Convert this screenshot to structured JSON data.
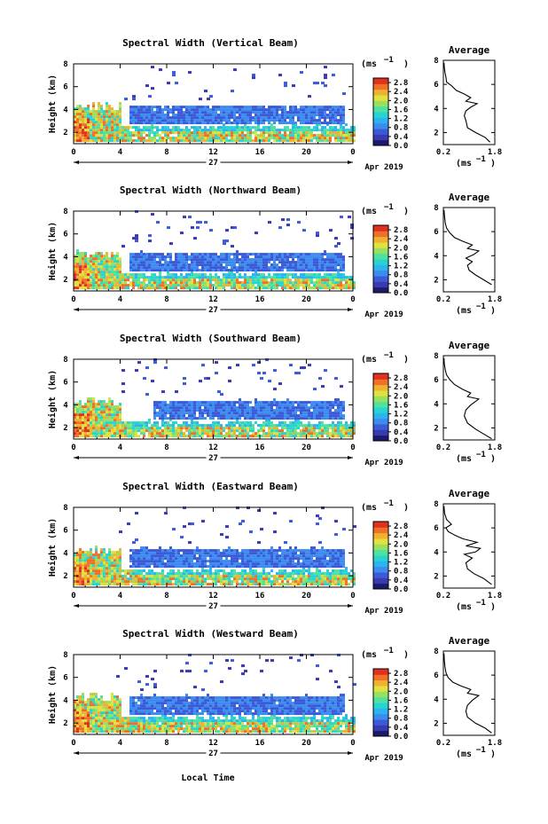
{
  "figure": {
    "xlabel": "Local Time",
    "date_label": "Apr 2019",
    "day_label": "27",
    "units_label": "(ms",
    "units_exp": "−1",
    "avg_title": "Average",
    "avg_xlabel": "(ms",
    "avg_xexp": "−1",
    "ylabel": "Height (km)"
  },
  "chart_data": [
    {
      "type": "heatmap",
      "title": "Spectral Width (Vertical Beam)",
      "xlabel": "Local Time",
      "ylabel": "Height (km)",
      "xlim": [
        0,
        24
      ],
      "ylim": [
        1,
        8
      ],
      "xticks": [
        "0",
        "4",
        "8",
        "12",
        "16",
        "20",
        "0"
      ],
      "yticks": [
        "2",
        "4",
        "6",
        "8"
      ],
      "colorbar": {
        "ticks": [
          "0.0",
          "0.4",
          "0.8",
          "1.2",
          "1.6",
          "2.0",
          "2.4",
          "2.8"
        ],
        "range": [
          0,
          3
        ]
      },
      "profile": {
        "title": "Average",
        "xlim": [
          0.2,
          1.8
        ],
        "ylim": [
          1,
          8
        ],
        "points": [
          [
            1.65,
            1.2
          ],
          [
            1.5,
            1.6
          ],
          [
            1.2,
            2.0
          ],
          [
            0.95,
            2.4
          ],
          [
            0.9,
            3.0
          ],
          [
            0.85,
            3.4
          ],
          [
            0.9,
            3.8
          ],
          [
            1.05,
            4.1
          ],
          [
            1.25,
            4.4
          ],
          [
            0.9,
            4.6
          ],
          [
            1.05,
            4.9
          ],
          [
            0.85,
            5.2
          ],
          [
            0.6,
            5.5
          ],
          [
            0.45,
            5.9
          ],
          [
            0.3,
            6.2
          ],
          [
            0.28,
            6.6
          ],
          [
            0.25,
            7.0
          ],
          [
            0.23,
            7.4
          ],
          [
            0.22,
            7.8
          ]
        ]
      }
    },
    {
      "type": "heatmap",
      "title": "Spectral Width (Northward Beam)",
      "xlabel": "Local Time",
      "ylabel": "Height (km)",
      "xlim": [
        0,
        24
      ],
      "ylim": [
        1,
        8
      ],
      "xticks": [
        "0",
        "4",
        "8",
        "12",
        "16",
        "20",
        "0"
      ],
      "yticks": [
        "2",
        "4",
        "6",
        "8"
      ],
      "colorbar": {
        "ticks": [
          "0.0",
          "0.4",
          "0.8",
          "1.2",
          "1.6",
          "2.0",
          "2.4",
          "2.8"
        ],
        "range": [
          0,
          3
        ]
      },
      "profile": {
        "title": "Average",
        "xlim": [
          0.2,
          1.8
        ],
        "ylim": [
          1,
          8
        ],
        "points": [
          [
            1.7,
            1.6
          ],
          [
            1.45,
            2.0
          ],
          [
            1.2,
            2.4
          ],
          [
            1.0,
            2.8
          ],
          [
            0.95,
            3.2
          ],
          [
            1.1,
            3.5
          ],
          [
            0.9,
            3.8
          ],
          [
            1.15,
            4.1
          ],
          [
            1.3,
            4.4
          ],
          [
            0.95,
            4.6
          ],
          [
            1.1,
            4.9
          ],
          [
            0.8,
            5.2
          ],
          [
            0.55,
            5.5
          ],
          [
            0.4,
            5.9
          ],
          [
            0.3,
            6.3
          ],
          [
            0.26,
            6.7
          ],
          [
            0.24,
            7.2
          ],
          [
            0.22,
            7.8
          ]
        ]
      }
    },
    {
      "type": "heatmap",
      "title": "Spectral Width (Southward Beam)",
      "xlabel": "Local Time",
      "ylabel": "Height (km)",
      "xlim": [
        0,
        24
      ],
      "ylim": [
        1,
        8
      ],
      "xticks": [
        "0",
        "4",
        "8",
        "12",
        "16",
        "20",
        "0"
      ],
      "yticks": [
        "2",
        "4",
        "6",
        "8"
      ],
      "colorbar": {
        "ticks": [
          "0.0",
          "0.4",
          "0.8",
          "1.2",
          "1.6",
          "2.0",
          "2.4",
          "2.8"
        ],
        "range": [
          0,
          3
        ]
      },
      "profile": {
        "title": "Average",
        "xlim": [
          0.2,
          1.8
        ],
        "ylim": [
          1,
          8
        ],
        "points": [
          [
            1.7,
            1.1
          ],
          [
            1.45,
            1.5
          ],
          [
            1.2,
            1.9
          ],
          [
            0.95,
            2.4
          ],
          [
            0.85,
            3.0
          ],
          [
            0.9,
            3.5
          ],
          [
            1.05,
            3.9
          ],
          [
            1.2,
            4.2
          ],
          [
            1.3,
            4.4
          ],
          [
            0.95,
            4.6
          ],
          [
            1.05,
            4.9
          ],
          [
            0.8,
            5.2
          ],
          [
            0.55,
            5.6
          ],
          [
            0.4,
            6.0
          ],
          [
            0.3,
            6.4
          ],
          [
            0.26,
            6.8
          ],
          [
            0.23,
            7.3
          ],
          [
            0.22,
            7.8
          ]
        ]
      }
    },
    {
      "type": "heatmap",
      "title": "Spectral Width (Eastward Beam)",
      "xlabel": "Local Time",
      "ylabel": "Height (km)",
      "xlim": [
        0,
        24
      ],
      "ylim": [
        1,
        8
      ],
      "xticks": [
        "0",
        "4",
        "8",
        "12",
        "16",
        "20",
        "0"
      ],
      "yticks": [
        "2",
        "4",
        "6",
        "8"
      ],
      "colorbar": {
        "ticks": [
          "0.0",
          "0.4",
          "0.8",
          "1.2",
          "1.6",
          "2.0",
          "2.4",
          "2.8"
        ],
        "range": [
          0,
          3
        ]
      },
      "profile": {
        "title": "Average",
        "xlim": [
          0.2,
          1.8
        ],
        "ylim": [
          1,
          8
        ],
        "points": [
          [
            1.7,
            1.3
          ],
          [
            1.45,
            1.8
          ],
          [
            1.15,
            2.2
          ],
          [
            0.95,
            2.6
          ],
          [
            0.9,
            3.1
          ],
          [
            1.1,
            3.5
          ],
          [
            0.85,
            3.8
          ],
          [
            1.2,
            4.0
          ],
          [
            1.35,
            4.3
          ],
          [
            0.9,
            4.5
          ],
          [
            1.25,
            4.8
          ],
          [
            0.8,
            5.1
          ],
          [
            0.55,
            5.4
          ],
          [
            0.35,
            5.7
          ],
          [
            0.28,
            6.0
          ],
          [
            0.45,
            6.3
          ],
          [
            0.3,
            6.7
          ],
          [
            0.24,
            7.2
          ],
          [
            0.22,
            7.8
          ]
        ]
      }
    },
    {
      "type": "heatmap",
      "title": "Spectral Width (Westward Beam)",
      "xlabel": "Local Time",
      "ylabel": "Height (km)",
      "xlim": [
        0,
        24
      ],
      "ylim": [
        1,
        8
      ],
      "xticks": [
        "0",
        "4",
        "8",
        "12",
        "16",
        "20",
        "0"
      ],
      "yticks": [
        "2",
        "4",
        "6",
        "8"
      ],
      "colorbar": {
        "ticks": [
          "0.0",
          "0.4",
          "0.8",
          "1.2",
          "1.6",
          "2.0",
          "2.4",
          "2.8"
        ],
        "range": [
          0,
          3
        ]
      },
      "profile": {
        "title": "Average",
        "xlim": [
          0.2,
          1.8
        ],
        "ylim": [
          1,
          8
        ],
        "points": [
          [
            1.7,
            1.2
          ],
          [
            1.5,
            1.6
          ],
          [
            1.2,
            2.0
          ],
          [
            0.95,
            2.5
          ],
          [
            0.9,
            3.0
          ],
          [
            0.95,
            3.5
          ],
          [
            1.1,
            3.9
          ],
          [
            1.3,
            4.3
          ],
          [
            0.95,
            4.5
          ],
          [
            1.05,
            4.8
          ],
          [
            0.75,
            5.1
          ],
          [
            0.5,
            5.4
          ],
          [
            0.35,
            5.8
          ],
          [
            0.28,
            6.2
          ],
          [
            0.25,
            6.7
          ],
          [
            0.23,
            7.2
          ],
          [
            0.22,
            7.8
          ]
        ]
      }
    }
  ],
  "colors": {
    "scale": [
      "#1a1a6e",
      "#3a3ab0",
      "#3c5ad8",
      "#3c8cf0",
      "#2cb4f0",
      "#28d4d0",
      "#50e0a0",
      "#98e060",
      "#e0e040",
      "#f0b030",
      "#f07028",
      "#e03020"
    ]
  }
}
